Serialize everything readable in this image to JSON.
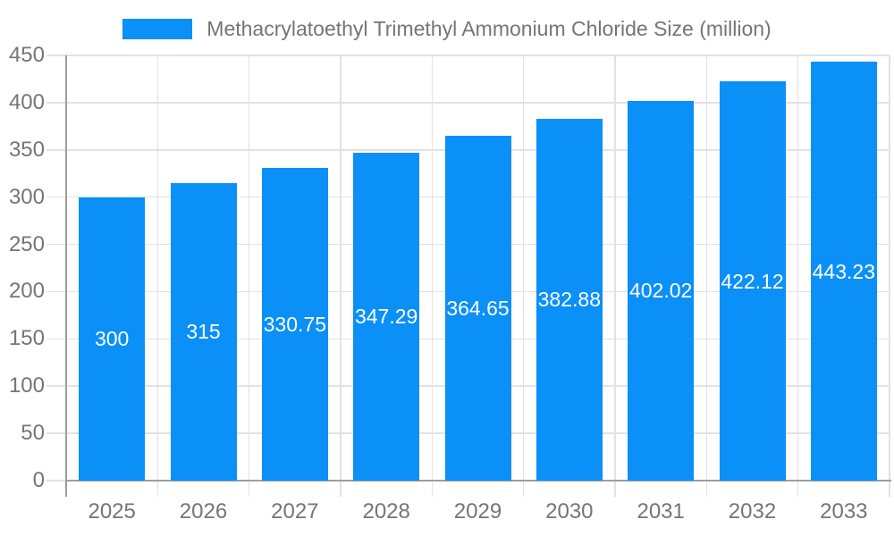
{
  "legend": {
    "label": "Methacrylatoethyl Trimethyl Ammonium Chloride Size (million)"
  },
  "chart_data": {
    "type": "bar",
    "title": "Methacrylatoethyl Trimethyl Ammonium Chloride Size (million)",
    "categories": [
      "2025",
      "2026",
      "2027",
      "2028",
      "2029",
      "2030",
      "2031",
      "2032",
      "2033"
    ],
    "values": [
      300,
      315,
      330.75,
      347.29,
      364.65,
      382.88,
      402.02,
      422.12,
      443.23
    ],
    "value_labels": [
      "300",
      "315",
      "330.75",
      "347.29",
      "364.65",
      "382.88",
      "402.02",
      "422.12",
      "443.23"
    ],
    "xlabel": "",
    "ylabel": "",
    "ylim": [
      0,
      450
    ],
    "ytick_step": 50,
    "ytick_labels": [
      "0",
      "50",
      "100",
      "150",
      "200",
      "250",
      "300",
      "350",
      "400",
      "450"
    ],
    "grid": true,
    "legend_position": "top",
    "colors": {
      "bar": "#0a90f7",
      "grid": "#e2e2e2",
      "axis": "#9e9e9e",
      "text": "#757575",
      "value_label": "#ffffff",
      "background": "#ffffff"
    }
  }
}
